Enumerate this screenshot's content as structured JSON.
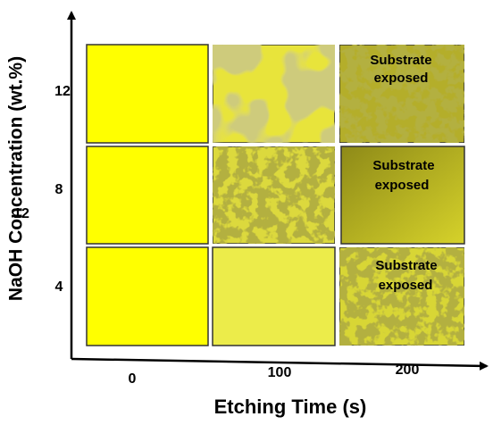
{
  "axes": {
    "y_title": "NaOH Concentration (wt.%)",
    "x_title": "Etching Time (s)"
  },
  "columns": [
    "0",
    "100",
    "200"
  ],
  "rows": [
    "12",
    "8",
    "4"
  ],
  "stray_label": "12",
  "captions": [
    [
      "Substrate",
      "exposed"
    ],
    [
      "Substrate",
      "exposed"
    ],
    [
      "Substrate",
      "exposed"
    ]
  ]
}
